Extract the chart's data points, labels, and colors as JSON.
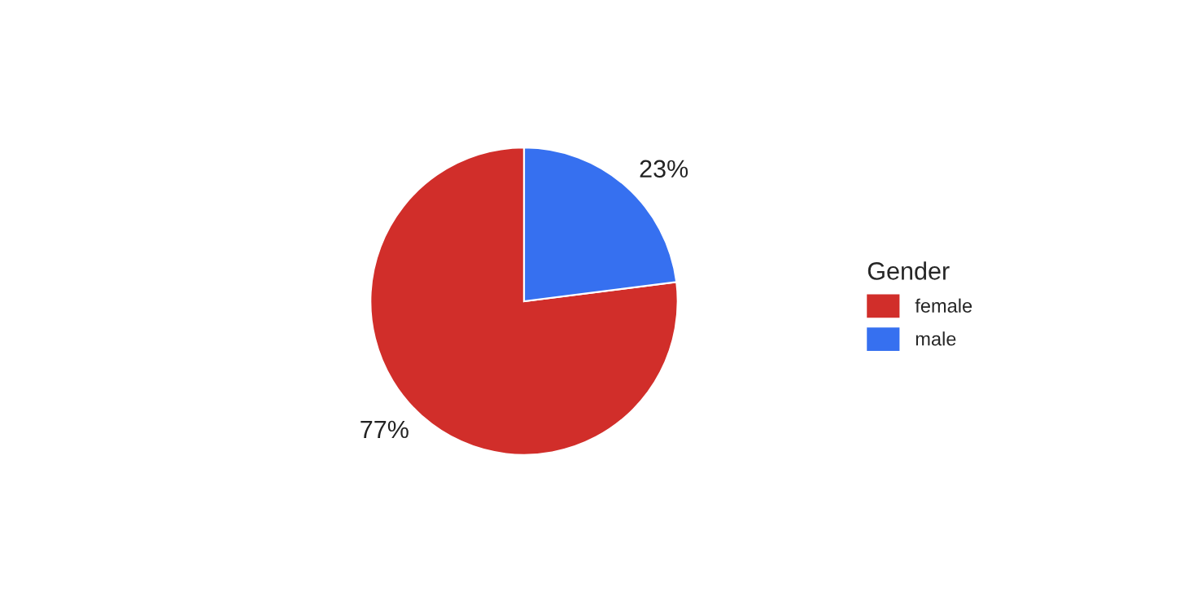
{
  "chart_data": {
    "type": "pie",
    "categories": [
      "female",
      "male"
    ],
    "values": [
      77,
      23
    ],
    "colors": [
      "#d12e2a",
      "#3670f0"
    ],
    "value_labels": [
      "77%",
      "23%"
    ],
    "legend_title": "Gender",
    "legend": "right"
  }
}
